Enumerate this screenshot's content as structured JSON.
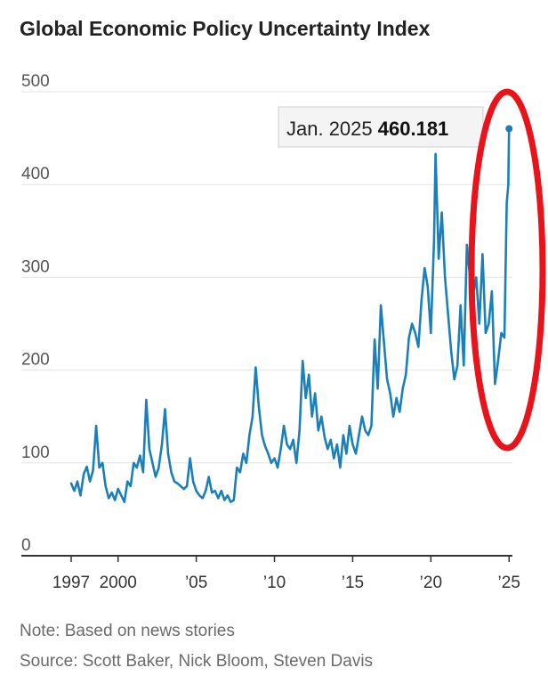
{
  "chart_data": {
    "type": "line",
    "title": "Global Economic Policy Uncertainty Index",
    "xlabel": "",
    "ylabel": "",
    "ylim": [
      0,
      500
    ],
    "xlim": [
      1997,
      2025.1
    ],
    "yticks": [
      "0",
      "100",
      "200",
      "300",
      "400",
      "500"
    ],
    "xticks": [
      {
        "value": 1997,
        "label": "1997"
      },
      {
        "value": 2000,
        "label": "2000"
      },
      {
        "value": 2005,
        "label": "’05"
      },
      {
        "value": 2010,
        "label": "’10"
      },
      {
        "value": 2015,
        "label": "’15"
      },
      {
        "value": 2020,
        "label": "’20"
      },
      {
        "value": 2025,
        "label": "’25"
      }
    ],
    "grid": true,
    "series": [
      {
        "name": "",
        "color": "#1b7fb8",
        "points": [
          [
            1997.0,
            78
          ],
          [
            1997.2,
            70
          ],
          [
            1997.4,
            80
          ],
          [
            1997.6,
            65
          ],
          [
            1997.8,
            88
          ],
          [
            1998.0,
            96
          ],
          [
            1998.2,
            80
          ],
          [
            1998.4,
            92
          ],
          [
            1998.6,
            140
          ],
          [
            1998.8,
            95
          ],
          [
            1999.0,
            100
          ],
          [
            1999.2,
            75
          ],
          [
            1999.4,
            62
          ],
          [
            1999.6,
            68
          ],
          [
            1999.8,
            60
          ],
          [
            2000.0,
            72
          ],
          [
            2000.2,
            65
          ],
          [
            2000.4,
            58
          ],
          [
            2000.6,
            80
          ],
          [
            2000.8,
            75
          ],
          [
            2001.0,
            100
          ],
          [
            2001.2,
            95
          ],
          [
            2001.4,
            108
          ],
          [
            2001.6,
            90
          ],
          [
            2001.8,
            168
          ],
          [
            2002.0,
            115
          ],
          [
            2002.2,
            100
          ],
          [
            2002.4,
            85
          ],
          [
            2002.6,
            95
          ],
          [
            2002.8,
            120
          ],
          [
            2003.0,
            158
          ],
          [
            2003.2,
            110
          ],
          [
            2003.4,
            90
          ],
          [
            2003.6,
            80
          ],
          [
            2003.8,
            78
          ],
          [
            2004.0,
            75
          ],
          [
            2004.2,
            72
          ],
          [
            2004.4,
            75
          ],
          [
            2004.6,
            105
          ],
          [
            2004.8,
            80
          ],
          [
            2005.0,
            70
          ],
          [
            2005.2,
            65
          ],
          [
            2005.4,
            62
          ],
          [
            2005.6,
            70
          ],
          [
            2005.8,
            85
          ],
          [
            2006.0,
            68
          ],
          [
            2006.2,
            70
          ],
          [
            2006.4,
            62
          ],
          [
            2006.6,
            70
          ],
          [
            2006.8,
            60
          ],
          [
            2007.0,
            65
          ],
          [
            2007.2,
            58
          ],
          [
            2007.4,
            60
          ],
          [
            2007.6,
            95
          ],
          [
            2007.8,
            90
          ],
          [
            2008.0,
            110
          ],
          [
            2008.2,
            100
          ],
          [
            2008.4,
            130
          ],
          [
            2008.6,
            150
          ],
          [
            2008.8,
            203
          ],
          [
            2009.0,
            160
          ],
          [
            2009.2,
            130
          ],
          [
            2009.4,
            118
          ],
          [
            2009.6,
            110
          ],
          [
            2009.8,
            100
          ],
          [
            2010.0,
            105
          ],
          [
            2010.2,
            95
          ],
          [
            2010.4,
            115
          ],
          [
            2010.6,
            140
          ],
          [
            2010.8,
            120
          ],
          [
            2011.0,
            115
          ],
          [
            2011.2,
            125
          ],
          [
            2011.4,
            100
          ],
          [
            2011.6,
            135
          ],
          [
            2011.8,
            210
          ],
          [
            2012.0,
            170
          ],
          [
            2012.2,
            195
          ],
          [
            2012.4,
            150
          ],
          [
            2012.6,
            175
          ],
          [
            2012.8,
            135
          ],
          [
            2013.0,
            150
          ],
          [
            2013.2,
            128
          ],
          [
            2013.4,
            115
          ],
          [
            2013.6,
            125
          ],
          [
            2013.8,
            105
          ],
          [
            2014.0,
            120
          ],
          [
            2014.2,
            95
          ],
          [
            2014.4,
            130
          ],
          [
            2014.6,
            110
          ],
          [
            2014.8,
            140
          ],
          [
            2015.0,
            120
          ],
          [
            2015.2,
            110
          ],
          [
            2015.4,
            130
          ],
          [
            2015.6,
            150
          ],
          [
            2015.8,
            135
          ],
          [
            2016.0,
            130
          ],
          [
            2016.2,
            140
          ],
          [
            2016.4,
            233
          ],
          [
            2016.6,
            180
          ],
          [
            2016.8,
            270
          ],
          [
            2017.0,
            230
          ],
          [
            2017.2,
            190
          ],
          [
            2017.4,
            175
          ],
          [
            2017.6,
            150
          ],
          [
            2017.8,
            170
          ],
          [
            2018.0,
            155
          ],
          [
            2018.2,
            180
          ],
          [
            2018.4,
            195
          ],
          [
            2018.6,
            235
          ],
          [
            2018.8,
            250
          ],
          [
            2019.0,
            240
          ],
          [
            2019.2,
            225
          ],
          [
            2019.4,
            275
          ],
          [
            2019.6,
            310
          ],
          [
            2019.8,
            290
          ],
          [
            2020.0,
            240
          ],
          [
            2020.2,
            340
          ],
          [
            2020.3,
            433
          ],
          [
            2020.5,
            320
          ],
          [
            2020.7,
            370
          ],
          [
            2020.9,
            300
          ],
          [
            2021.1,
            260
          ],
          [
            2021.3,
            220
          ],
          [
            2021.5,
            190
          ],
          [
            2021.7,
            205
          ],
          [
            2021.9,
            270
          ],
          [
            2022.1,
            205
          ],
          [
            2022.3,
            335
          ],
          [
            2022.5,
            300
          ],
          [
            2022.7,
            280
          ],
          [
            2022.9,
            300
          ],
          [
            2023.1,
            250
          ],
          [
            2023.3,
            325
          ],
          [
            2023.5,
            240
          ],
          [
            2023.7,
            250
          ],
          [
            2023.9,
            285
          ],
          [
            2024.1,
            185
          ],
          [
            2024.3,
            210
          ],
          [
            2024.5,
            240
          ],
          [
            2024.7,
            235
          ],
          [
            2024.85,
            380
          ],
          [
            2024.95,
            400
          ],
          [
            2025.0,
            460.181
          ]
        ]
      }
    ],
    "annotation": {
      "label": "Jan. 2025",
      "value": "460.181",
      "x": 2025.0,
      "y": 460.181
    },
    "notes": [
      "Note: Based on news stories",
      "Source: Scott Baker, Nick Bloom, Steven Davis"
    ]
  },
  "highlight_color": "#e8141b"
}
